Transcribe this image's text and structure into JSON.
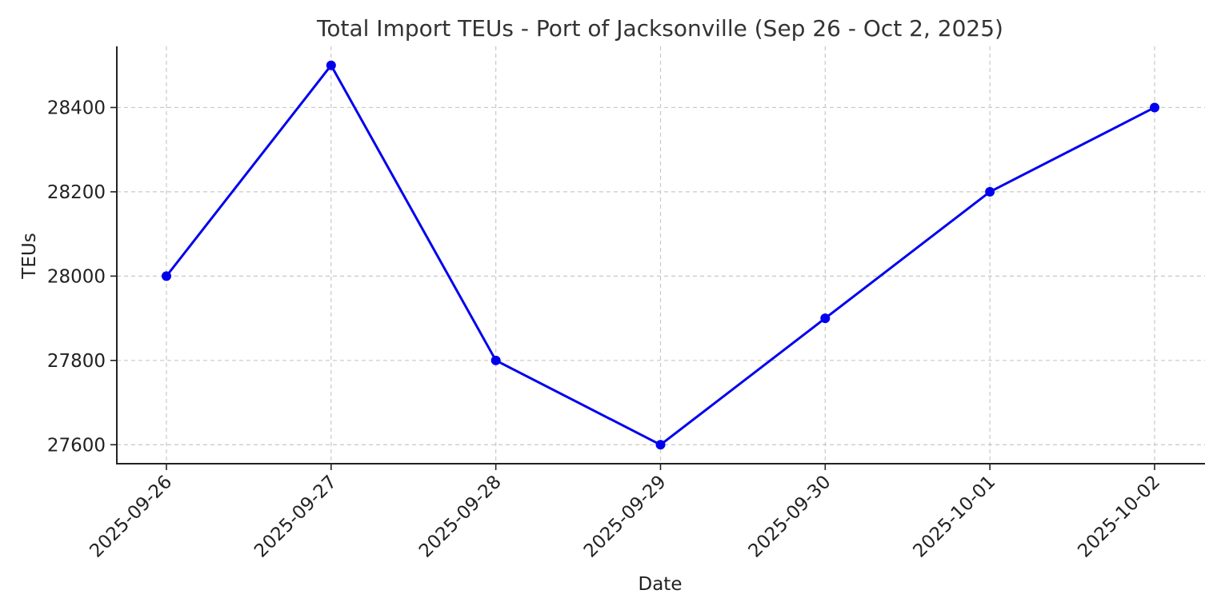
{
  "chart_data": {
    "type": "line",
    "title": "Total Import TEUs - Port of Jacksonville (Sep 26 - Oct 2, 2025)",
    "xlabel": "Date",
    "ylabel": "TEUs",
    "categories": [
      "2025-09-26",
      "2025-09-27",
      "2025-09-28",
      "2025-09-29",
      "2025-09-30",
      "2025-10-01",
      "2025-10-02"
    ],
    "series": [
      {
        "values": [
          28000,
          28500,
          27800,
          27600,
          27900,
          28200,
          28400
        ],
        "color": "#0000ee",
        "marker": "circle"
      }
    ],
    "yticks": [
      27600,
      27800,
      28000,
      28200,
      28400
    ],
    "ylim": [
      27555,
      28545
    ],
    "grid": true,
    "legend": "none"
  }
}
